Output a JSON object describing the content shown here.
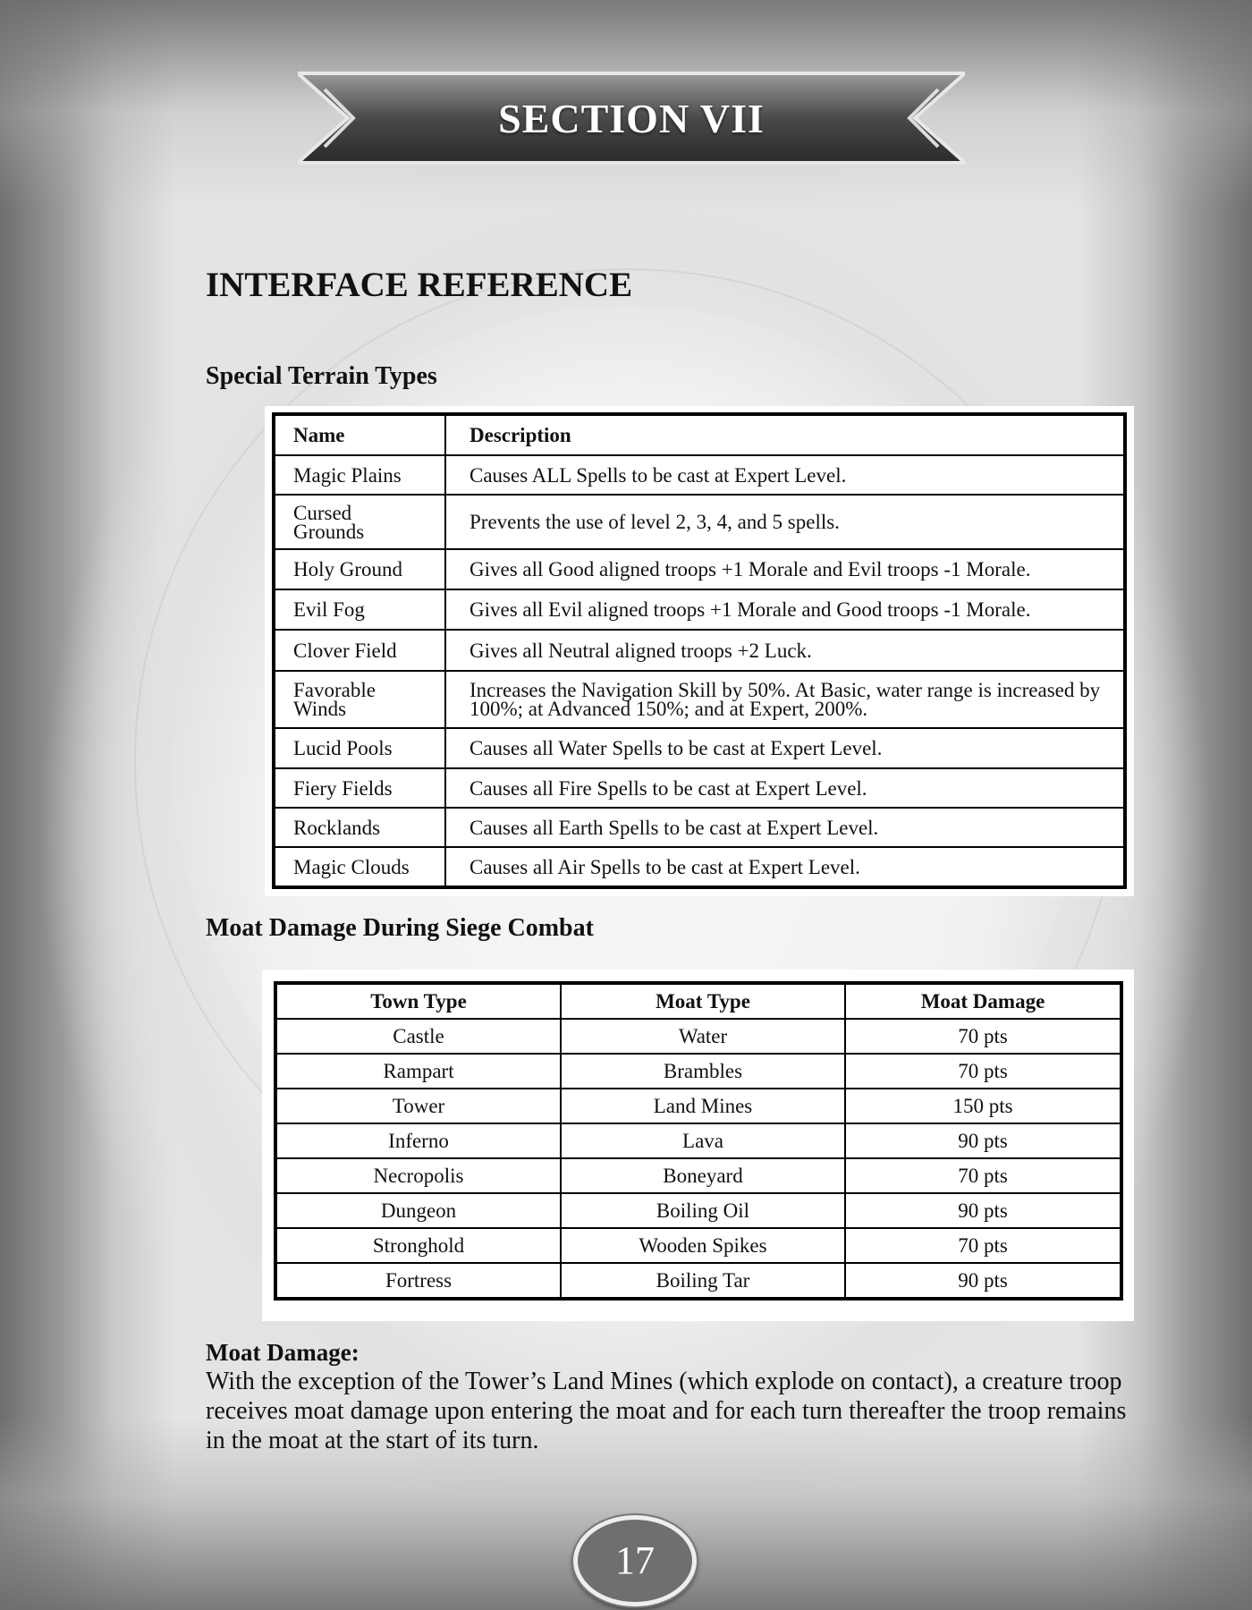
{
  "banner": {
    "title": "SECTION VII"
  },
  "heading": "INTERFACE REFERENCE",
  "terrain": {
    "title": "Special Terrain Types",
    "headers": [
      "Name",
      "Description"
    ],
    "rows": [
      {
        "name": "Magic Plains",
        "desc": "Causes ALL Spells to be cast at Expert Level."
      },
      {
        "name": "Cursed Grounds",
        "desc": "Prevents the use of level 2, 3, 4, and 5 spells."
      },
      {
        "name": "Holy Ground",
        "desc": "Gives all Good aligned troops +1 Morale and Evil troops -1 Morale."
      },
      {
        "name": "Evil Fog",
        "desc": "Gives all Evil aligned troops +1 Morale and Good troops -1 Morale."
      },
      {
        "name": "Clover Field",
        "desc": "Gives all Neutral aligned troops +2 Luck."
      },
      {
        "name": "Favorable Winds",
        "desc": "Increases the Navigation Skill by 50%. At Basic, water range is increased by 100%; at Advanced 150%; and at Expert, 200%."
      },
      {
        "name": "Lucid Pools",
        "desc": "Causes all Water Spells to be cast at Expert Level."
      },
      {
        "name": "Fiery Fields",
        "desc": "Causes all Fire Spells to be cast at Expert Level."
      },
      {
        "name": "Rocklands",
        "desc": "Causes all Earth Spells to be cast at Expert Level."
      },
      {
        "name": "Magic Clouds",
        "desc": "Causes all Air Spells to be cast at Expert Level."
      }
    ]
  },
  "moat": {
    "title": "Moat Damage During Siege Combat",
    "headers": [
      "Town Type",
      "Moat Type",
      "Moat Damage"
    ],
    "rows": [
      [
        "Castle",
        "Water",
        "70 pts"
      ],
      [
        "Rampart",
        "Brambles",
        "70 pts"
      ],
      [
        "Tower",
        "Land Mines",
        "150 pts"
      ],
      [
        "Inferno",
        "Lava",
        "90 pts"
      ],
      [
        "Necropolis",
        "Boneyard",
        "70 pts"
      ],
      [
        "Dungeon",
        "Boiling Oil",
        "90 pts"
      ],
      [
        "Stronghold",
        "Wooden Spikes",
        "70 pts"
      ],
      [
        "Fortress",
        "Boiling Tar",
        "90 pts"
      ]
    ]
  },
  "note": {
    "title": "Moat Damage:",
    "body": "With the exception of the Tower’s Land Mines (which explode on contact), a creature troop receives moat damage upon entering the moat and for each turn thereafter the troop remains in the moat at the start of its turn."
  },
  "page_number": "17"
}
